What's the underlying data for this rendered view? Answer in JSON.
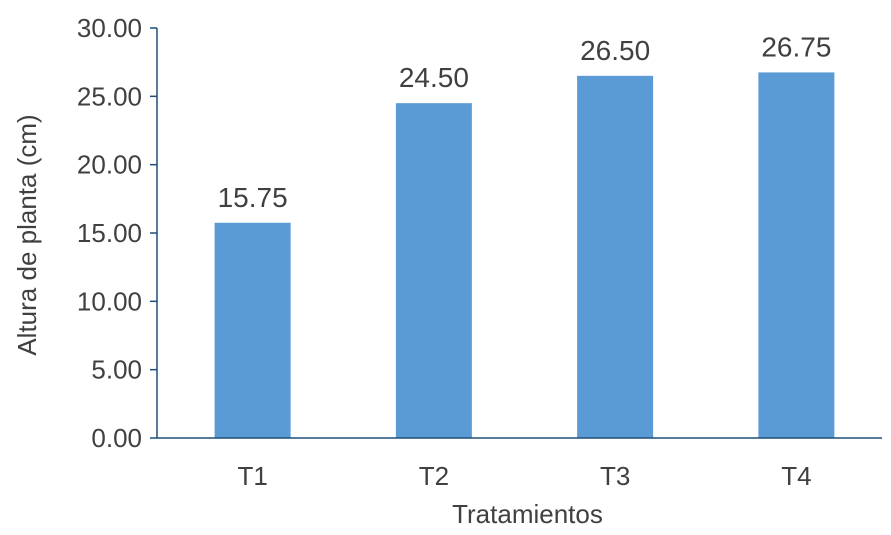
{
  "chart_data": {
    "type": "bar",
    "categories": [
      "T1",
      "T2",
      "T3",
      "T4"
    ],
    "values": [
      15.75,
      24.5,
      26.5,
      26.75
    ],
    "value_labels": [
      "15.75",
      "24.50",
      "26.50",
      "26.75"
    ],
    "title": "",
    "xlabel": "Tratamientos",
    "ylabel": "Altura de planta (cm)",
    "ylim": [
      0,
      30
    ],
    "yticks": [
      0,
      5,
      10,
      15,
      20,
      25,
      30
    ],
    "ytick_labels": [
      "0.00",
      "5.00",
      "10.00",
      "15.00",
      "20.00",
      "25.00",
      "30.00"
    ],
    "grid": false,
    "legend": "none",
    "bar_color": "#5B9BD5",
    "axis_color": "#1F4E79",
    "text_color": "#404040"
  }
}
